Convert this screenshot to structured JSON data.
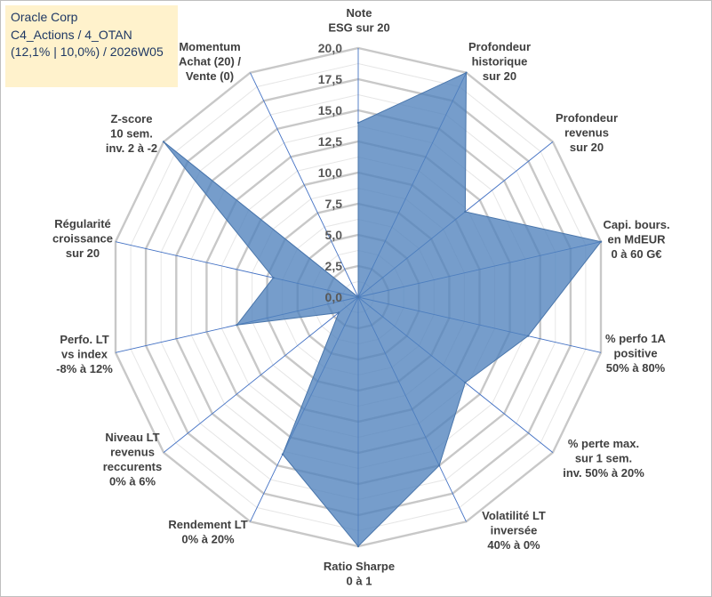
{
  "header": {
    "line1": "Oracle Corp",
    "line2": "C4_Actions / 4_OTAN",
    "line3": "(12,1% | 10,0%) / 2026W05"
  },
  "colors": {
    "fill": "#4f81bd",
    "grid": "#c8c8c8",
    "spoke": "#4472c4",
    "title_bg": "#fff2cc"
  },
  "chart_data": {
    "type": "radar",
    "title": "Oracle Corp",
    "range": [
      0,
      20
    ],
    "ticks": [
      "0,0",
      "2,5",
      "5,0",
      "7,5",
      "10,0",
      "12,5",
      "15,0",
      "17,5",
      "20,0"
    ],
    "tick_values": [
      0,
      2.5,
      5,
      7.5,
      10,
      12.5,
      15,
      17.5,
      20
    ],
    "axes": [
      {
        "label": [
          "Note",
          "ESG sur 20"
        ],
        "value": 14
      },
      {
        "label": [
          "Profondeur",
          "historique",
          "sur 20"
        ],
        "value": 20
      },
      {
        "label": [
          "Profondeur",
          "revenus",
          "sur 20"
        ],
        "value": 11
      },
      {
        "label": [
          "Capi. bours.",
          "en MdEUR",
          "0 à 60 G€"
        ],
        "value": 20
      },
      {
        "label": [
          "% perfo 1A",
          "positive",
          "50% à 80%"
        ],
        "value": 14
      },
      {
        "label": [
          "% perte max.",
          "sur 1 sem.",
          "inv. 50% à 20%"
        ],
        "value": 11
      },
      {
        "label": [
          "Volatilité LT",
          "inversée",
          "40% à 0%"
        ],
        "value": 15
      },
      {
        "label": [
          "Ratio Sharpe",
          "0 à 1"
        ],
        "value": 20
      },
      {
        "label": [
          "Rendement LT",
          "0% à 20%"
        ],
        "value": 14
      },
      {
        "label": [
          "Niveau LT",
          "revenus",
          "reccurents",
          "0% à 6%"
        ],
        "value": 2
      },
      {
        "label": [
          "Perfo. LT",
          "vs index",
          "-8% à 12%"
        ],
        "value": 10
      },
      {
        "label": [
          "Régularité",
          "croissance",
          "sur 20"
        ],
        "value": 7
      },
      {
        "label": [
          "Z-score",
          "10 sem.",
          "inv. 2 à -2"
        ],
        "value": 20
      },
      {
        "label": [
          "Momentum",
          "Achat (20) /",
          "Vente (0)"
        ],
        "value": 0
      }
    ]
  }
}
